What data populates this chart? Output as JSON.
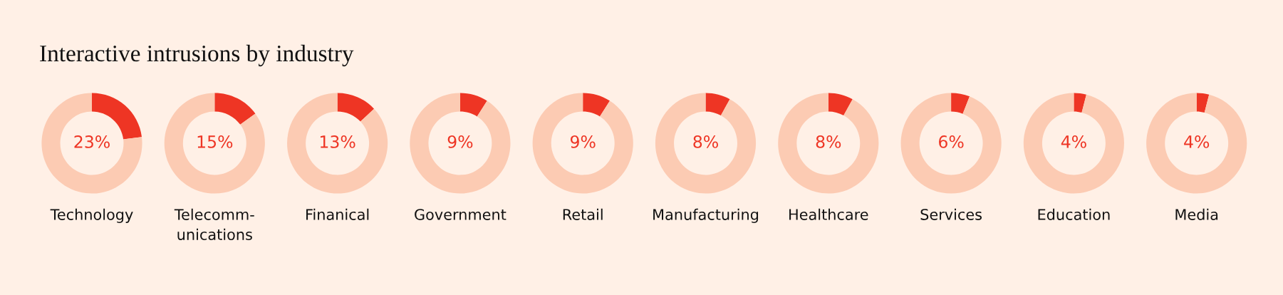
{
  "chart_data": [
    {
      "type": "donut",
      "title": "Interactive intrusions by industry",
      "xlabel": "Technology",
      "categories": [
        null,
        null
      ],
      "values": [
        23,
        77
      ],
      "colors": [
        "#ee3524",
        "#fccbb3"
      ],
      "value_labels": [
        "23%",
        null
      ]
    },
    {
      "type": "donut",
      "xlabel": "Telecomm-\nunications",
      "categories": [
        null,
        null
      ],
      "values": [
        15,
        85
      ],
      "colors": [
        "#ee3524",
        "#fccbb3"
      ],
      "value_labels": [
        "15%",
        null
      ]
    },
    {
      "type": "donut",
      "xlabel": "Finanical",
      "categories": [
        null,
        null
      ],
      "values": [
        13,
        87
      ],
      "colors": [
        "#ee3524",
        "#fccbb3"
      ],
      "value_labels": [
        "13%",
        null
      ]
    },
    {
      "type": "donut",
      "xlabel": "Government",
      "categories": [
        null,
        null
      ],
      "values": [
        9,
        91
      ],
      "colors": [
        "#ee3524",
        "#fccbb3"
      ],
      "value_labels": [
        "9%",
        null
      ]
    },
    {
      "type": "donut",
      "xlabel": "Retail",
      "categories": [
        null,
        null
      ],
      "values": [
        9,
        91
      ],
      "colors": [
        "#ee3524",
        "#fccbb3"
      ],
      "value_labels": [
        "9%",
        null
      ]
    },
    {
      "type": "donut",
      "xlabel": "Manufacturing",
      "categories": [
        null,
        null
      ],
      "values": [
        8,
        92
      ],
      "colors": [
        "#ee3524",
        "#fccbb3"
      ],
      "value_labels": [
        "8%",
        null
      ]
    },
    {
      "type": "donut",
      "xlabel": "Healthcare",
      "categories": [
        null,
        null
      ],
      "values": [
        8,
        92
      ],
      "colors": [
        "#ee3524",
        "#fccbb3"
      ],
      "value_labels": [
        "8%",
        null
      ]
    },
    {
      "type": "donut",
      "xlabel": "Services",
      "categories": [
        null,
        null
      ],
      "values": [
        6,
        94
      ],
      "colors": [
        "#ee3524",
        "#fccbb3"
      ],
      "value_labels": [
        "6%",
        null
      ]
    },
    {
      "type": "donut",
      "xlabel": "Education",
      "categories": [
        null,
        null
      ],
      "values": [
        4,
        96
      ],
      "colors": [
        "#ee3524",
        "#fccbb3"
      ],
      "value_labels": [
        "4%",
        null
      ]
    },
    {
      "type": "donut",
      "xlabel": "Media",
      "categories": [
        null,
        null
      ],
      "values": [
        4,
        96
      ],
      "colors": [
        "#ee3524",
        "#fccbb3"
      ],
      "value_labels": [
        "4%",
        null
      ]
    }
  ]
}
